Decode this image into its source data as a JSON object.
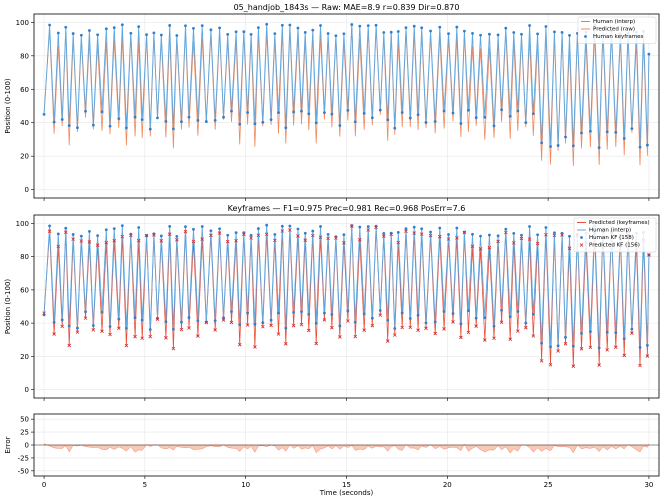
{
  "chart_data": [
    {
      "type": "line",
      "title": "05_handjob_1843s  —  Raw: MAE=8.9  r=0.839  Dir=0.870",
      "xlabel": "",
      "ylabel": "Position (0-100)",
      "xlim": [
        -0.5,
        30.5
      ],
      "ylim": [
        -5,
        105
      ],
      "xticks": [
        0,
        5,
        10,
        15,
        20,
        25,
        30
      ],
      "yticks": [
        0,
        20,
        40,
        60,
        80,
        100
      ],
      "grid": true,
      "legend_position": "top-right",
      "series": [
        {
          "name": "Human (interp)",
          "color": "#5fa8e0",
          "style": "line"
        },
        {
          "name": "Predicted (raw)",
          "color": "#f08a5d",
          "style": "line"
        },
        {
          "name": "Human keyframes",
          "color": "#2f7fd0",
          "style": "dot"
        }
      ]
    },
    {
      "type": "line",
      "title": "Keyframes  —  F1=0.975  Prec=0.981  Rec=0.968  PosErr=7.6",
      "xlabel": "",
      "ylabel": "Position (0-100)",
      "xlim": [
        -0.5,
        30.5
      ],
      "ylim": [
        -5,
        105
      ],
      "xticks": [
        0,
        5,
        10,
        15,
        20,
        25,
        30
      ],
      "yticks": [
        0,
        20,
        40,
        60,
        80,
        100
      ],
      "grid": true,
      "legend_position": "top-right",
      "series": [
        {
          "name": "Predicted (keyframes)",
          "color": "#e8503a",
          "style": "line"
        },
        {
          "name": "Human (interp)",
          "color": "#5fa8e0",
          "style": "line"
        },
        {
          "name": "Human KF (158)",
          "color": "#2f7fd0",
          "style": "dot"
        },
        {
          "name": "Predicted KF (156)",
          "color": "#d62728",
          "style": "x"
        }
      ]
    },
    {
      "type": "area",
      "title": "",
      "xlabel": "Time (seconds)",
      "ylabel": "Error",
      "xlim": [
        -0.5,
        30.5
      ],
      "ylim": [
        -60,
        60
      ],
      "xticks": [
        0,
        5,
        10,
        15,
        20,
        25,
        30
      ],
      "xticklabels": [
        "0",
        "5",
        "10",
        "15",
        "20",
        "25",
        "30"
      ],
      "yticks": [
        -50,
        -25,
        0,
        25,
        50
      ],
      "grid": true,
      "series": [
        {
          "color": "#f4a582",
          "style": "fill"
        }
      ]
    }
  ]
}
